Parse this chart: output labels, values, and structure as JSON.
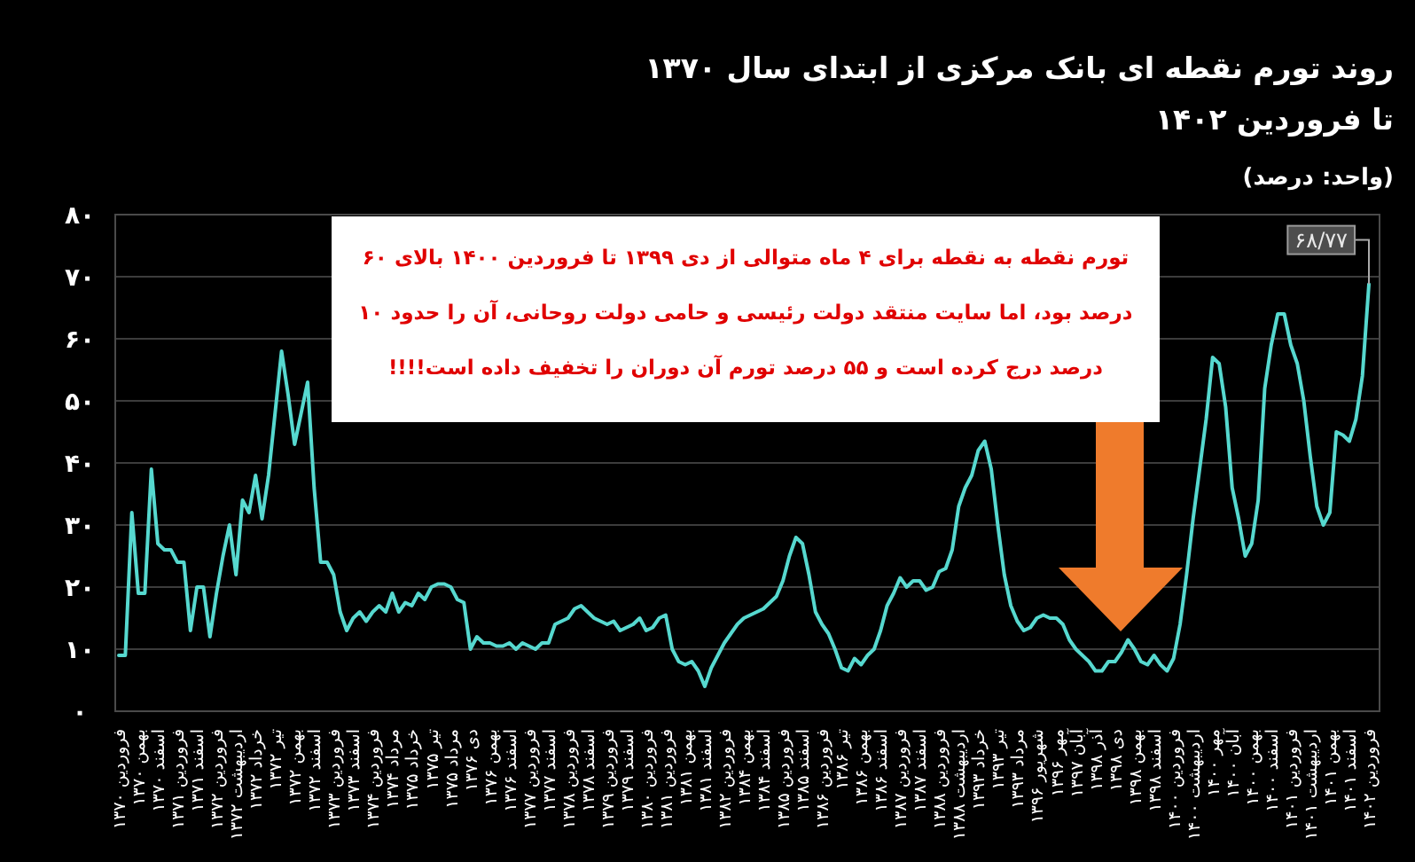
{
  "chart_data": {
    "type": "line",
    "title": "روند تورم نقطه ای بانک مرکزی از ابتدای سال ۱۳۷۰\nتا فروردین ۱۴۰۲",
    "subtitle": "(واحد: درصد)",
    "annotations": [
      "تورم نقطه به نقطه برای ۴ ماه متوالی از دی ۱۳۹۹ تا فروردین ۱۴۰۰ بالای ۶۰ درصد بود، اما سایت منتقد دولت رئیسی و حامی دولت روحانی، آن را حدود ۱۰ درصد درج کرده است و ۵۵ درصد تورم آن دوران را تخفیف داده است!!!!"
    ],
    "categories": [
      "فروردین ۱۳۷۰",
      null,
      null,
      "بهمن ۱۳۷۰",
      null,
      null,
      "اسفند ۱۳۷۰",
      null,
      null,
      "فروردین ۱۳۷۱",
      null,
      null,
      "اسفند ۱۳۷۱",
      null,
      null,
      "فروردین ۱۳۷۲",
      null,
      null,
      "اردیبهشت ۱۳۷۲",
      null,
      null,
      "خرداد ۱۳۷۲",
      null,
      null,
      "تیر ۱۳۷۲",
      null,
      null,
      "بهمن ۱۳۷۲",
      null,
      null,
      "اسفند ۱۳۷۲",
      null,
      null,
      "فروردین ۱۳۷۳",
      null,
      null,
      "اسفند ۱۳۷۳",
      null,
      null,
      "فروردین ۱۳۷۴",
      null,
      null,
      "مرداد ۱۳۷۴",
      null,
      null,
      "خرداد ۱۳۷۵",
      null,
      null,
      "تیر ۱۳۷۵",
      null,
      null,
      "مرداد ۱۳۷۵",
      null,
      null,
      "دی ۱۳۷۶",
      null,
      null,
      "بهمن ۱۳۷۶",
      null,
      null,
      "اسفند ۱۳۷۶",
      null,
      null,
      "فروردین ۱۳۷۷",
      null,
      null,
      "اسفند ۱۳۷۷",
      null,
      null,
      "فروردین ۱۳۷۸",
      null,
      null,
      "اسفند ۱۳۷۸",
      null,
      null,
      "فروردین ۱۳۷۹",
      null,
      null,
      "اسفند ۱۳۷۹",
      null,
      null,
      "فروردین ۱۳۸۰",
      null,
      null,
      "فروردین ۱۳۸۱",
      null,
      null,
      "بهمن ۱۳۸۱",
      null,
      null,
      "اسفند ۱۳۸۱",
      null,
      null,
      "فروردین ۱۳۸۲",
      null,
      null,
      "بهمن ۱۳۸۴",
      null,
      null,
      "اسفند ۱۳۸۴",
      null,
      null,
      "فروردین ۱۳۸۵",
      null,
      null,
      "اسفند ۱۳۸۵",
      null,
      null,
      "فروردین ۱۳۸۶",
      null,
      null,
      "تیر ۱۳۸۶",
      null,
      null,
      "بهمن ۱۳۸۶",
      null,
      null,
      "اسفند ۱۳۸۶",
      null,
      null,
      "فروردین ۱۳۸۷",
      null,
      null,
      "اسفند ۱۳۸۷",
      null,
      null,
      "فروردین ۱۳۸۸",
      null,
      null,
      "اردیبهشت ۱۳۸۸",
      null,
      null,
      "خرداد ۱۳۹۳",
      null,
      null,
      "تیر ۱۳۹۳",
      null,
      null,
      "مرداد ۱۳۹۳",
      null,
      null,
      "شهریور ۱۳۹۶",
      null,
      null,
      "مهر ۱۳۹۶",
      null,
      null,
      "آبان ۱۳۹۷",
      null,
      null,
      "آذر ۱۳۹۸",
      null,
      null,
      "دی ۱۳۹۸",
      null,
      null,
      "بهمن ۱۳۹۸",
      null,
      null,
      "اسفند ۱۳۹۸",
      null,
      null,
      "فروردین ۱۴۰۰",
      null,
      null,
      "اردیبهشت ۱۴۰۰",
      null,
      null,
      "مهر ۱۴۰۰",
      null,
      null,
      "آبان ۱۴۰۰",
      null,
      null,
      "بهمن ۱۴۰۰",
      null,
      null,
      "اسفند ۱۴۰۰",
      null,
      null,
      "فروردین ۱۴۰۱",
      null,
      null,
      "اردیبهشت ۱۴۰۱",
      null,
      null,
      "بهمن ۱۴۰۱",
      null,
      null,
      "اسفند ۱۴۰۱",
      null,
      null,
      "فروردین ۱۴۰۲"
    ],
    "series": [
      {
        "color": "#56d8cf",
        "values": [
          9,
          9,
          32,
          19,
          19,
          39,
          27,
          26,
          26,
          24,
          24,
          13,
          20,
          20,
          12,
          19,
          25,
          30,
          22,
          34,
          32,
          38,
          31,
          38,
          48,
          58,
          51,
          43,
          48,
          53,
          36,
          24,
          24,
          22,
          16,
          13,
          15,
          16,
          14.5,
          16,
          17,
          16,
          19,
          16,
          17.5,
          17,
          19,
          18,
          20,
          20.5,
          20.5,
          20,
          18,
          17.5,
          10,
          12,
          11,
          11,
          10.5,
          10.5,
          11,
          10,
          11,
          10.5,
          10,
          11,
          11,
          14,
          14.5,
          15,
          16.5,
          17,
          16,
          15,
          14.5,
          14,
          14.5,
          13,
          13.5,
          14,
          15,
          13,
          13.5,
          15,
          15.5,
          10,
          8,
          7.5,
          8,
          6.5,
          4,
          7,
          9,
          11,
          12.5,
          14,
          15,
          15.5,
          16,
          16.5,
          17.5,
          18.5,
          21,
          25,
          28,
          27,
          22,
          16,
          14,
          12.5,
          10,
          7,
          6.5,
          8.5,
          7.5,
          9,
          10,
          13,
          17,
          19,
          21.5,
          20,
          21,
          21,
          19.5,
          20,
          22.5,
          23,
          26,
          33,
          36,
          38,
          42,
          43.5,
          39,
          30,
          22,
          17,
          14.5,
          13,
          13.5,
          15,
          15.5,
          15,
          15,
          14,
          11.5,
          10,
          9,
          8,
          6.5,
          6.5,
          8,
          8,
          9.5,
          11.5,
          10,
          8,
          7.5,
          9,
          7.5,
          6.5,
          8.5,
          14,
          22,
          31,
          39,
          47,
          57,
          56,
          49,
          36,
          31,
          25,
          27,
          34,
          52,
          59,
          64,
          64,
          59,
          56,
          50,
          41,
          33,
          30,
          32,
          45,
          44.5,
          43.5,
          47,
          54,
          68.77
        ],
        "value_labels": [
          null,
          null,
          null,
          null,
          null,
          null,
          null,
          null,
          null,
          null,
          null,
          null,
          null,
          null,
          null,
          null,
          null,
          null,
          null,
          null,
          null,
          null,
          null,
          null,
          null,
          null,
          null,
          null,
          null,
          null,
          null,
          null,
          null,
          null,
          null,
          null,
          null,
          null,
          null,
          null,
          null,
          null,
          null,
          null,
          null,
          null,
          null,
          null,
          null,
          null,
          null,
          null,
          null,
          null,
          null,
          null,
          null,
          null,
          null,
          null,
          null,
          null,
          null,
          null,
          null,
          null,
          null,
          null,
          null,
          null,
          null,
          null,
          null,
          null,
          null,
          null,
          null,
          null,
          null,
          null,
          null,
          null,
          null,
          null,
          null,
          null,
          null,
          null,
          null,
          null,
          null,
          null,
          null,
          null,
          null,
          null,
          null,
          null,
          null,
          null,
          null,
          null,
          null,
          null,
          null,
          null,
          null,
          null,
          null,
          null,
          null,
          null,
          null,
          null,
          null,
          null,
          null,
          null,
          null,
          null,
          null,
          null,
          null,
          null,
          null,
          null,
          null,
          null,
          null,
          null,
          null,
          null,
          null,
          null,
          null,
          null,
          null,
          null,
          null,
          null,
          null,
          null,
          null,
          null,
          null,
          null,
          null,
          null,
          null,
          null,
          null,
          null,
          null,
          null,
          null,
          null,
          null,
          null,
          null,
          null,
          null,
          null,
          null,
          null,
          null,
          null,
          null,
          null,
          null,
          null,
          null,
          null,
          null,
          null,
          null,
          null,
          null,
          null,
          null,
          null,
          null,
          null,
          null,
          null,
          null,
          null,
          null,
          null,
          null,
          null,
          null,
          null,
          "۶۸/۷۷"
        ]
      }
    ],
    "ylim": [
      0,
      80
    ],
    "yticks": [
      {
        "value": 0,
        "label": "۰"
      },
      {
        "value": 10,
        "label": "۱۰"
      },
      {
        "value": 20,
        "label": "۲۰"
      },
      {
        "value": 30,
        "label": "۳۰"
      },
      {
        "value": 40,
        "label": "۴۰"
      },
      {
        "value": 50,
        "label": "۵۰"
      },
      {
        "value": 60,
        "label": "۶۰"
      },
      {
        "value": 70,
        "label": "۷۰"
      },
      {
        "value": 80,
        "label": "۸۰"
      }
    ],
    "grid": "y"
  }
}
